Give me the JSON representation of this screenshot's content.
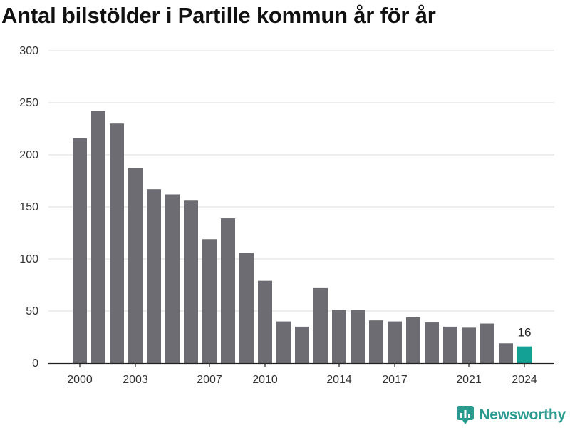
{
  "chart_data": {
    "type": "bar",
    "title": "Antal bilstölder i Partille kommun år för år",
    "categories": [
      2000,
      2001,
      2002,
      2003,
      2004,
      2005,
      2006,
      2007,
      2008,
      2009,
      2010,
      2011,
      2012,
      2013,
      2014,
      2015,
      2016,
      2017,
      2018,
      2019,
      2020,
      2021,
      2022,
      2023,
      2024
    ],
    "values": [
      216,
      242,
      230,
      187,
      167,
      162,
      156,
      119,
      139,
      106,
      79,
      40,
      35,
      72,
      51,
      51,
      41,
      40,
      44,
      39,
      35,
      34,
      38,
      19,
      16
    ],
    "x_tick_labels": [
      "2000",
      "2003",
      "2007",
      "2010",
      "2014",
      "2017",
      "2021",
      "2024"
    ],
    "y_ticks": [
      "0",
      "50",
      "100",
      "150",
      "200",
      "250",
      "300"
    ],
    "ylim": [
      0,
      300
    ],
    "grid": true,
    "bar_color": "#6d6c72",
    "highlight_color": "#13a195",
    "highlight_category": 2024,
    "highlight_label": "16"
  },
  "brand": {
    "name": "Newsworthy",
    "color": "#2a9a8f",
    "icon": "newsworthy-logo-icon"
  }
}
